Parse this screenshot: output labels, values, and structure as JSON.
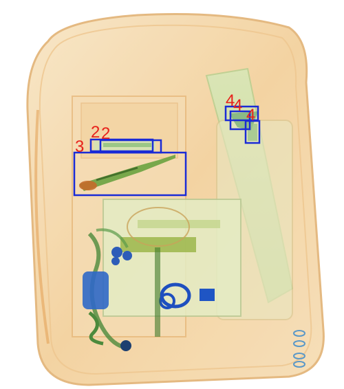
{
  "scan": {
    "annotations": [
      {
        "label": "2",
        "box_color": "#1a2bd6",
        "label_color": "#e8221c"
      },
      {
        "label": "2",
        "box_color": "#1a2bd6",
        "label_color": "#e8221c"
      },
      {
        "label": "3",
        "box_color": "#1a2bd6",
        "label_color": "#e8221c"
      },
      {
        "label": "4",
        "box_color": "#1a2bd6",
        "label_color": "#e8221c"
      },
      {
        "label": "4",
        "box_color": "#1a2bd6",
        "label_color": "#e8221c"
      },
      {
        "label": "4",
        "box_color": "#1a2bd6",
        "label_color": "#e8221c"
      }
    ],
    "palette": {
      "organic": "#f2c98f",
      "organic_dark": "#d9a060",
      "mixed": "#b9d79a",
      "metal": "#1f4fbf",
      "background": "#ffffff"
    }
  }
}
